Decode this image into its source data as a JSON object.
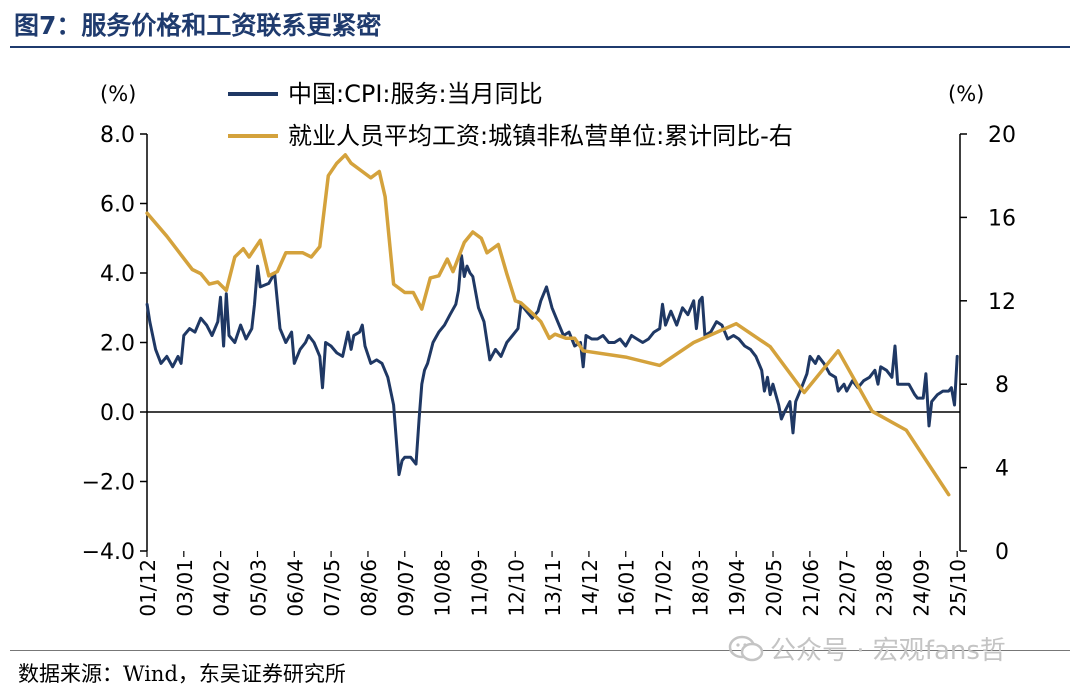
{
  "figure_title": "图7：服务价格和工资联系更紧密",
  "source": "数据来源：Wind，东吴证券研究所",
  "watermark": "公众号 · 宏观fans哲",
  "colors": {
    "cpi": "#1f3864",
    "wage": "#d4a23c",
    "title": "#1f3b6e"
  },
  "chart_data": {
    "type": "line",
    "title": "",
    "left_axis": {
      "unit_label": "(%)",
      "min": -4,
      "max": 8,
      "ticks": [
        -4,
        -2,
        0,
        2,
        4,
        6,
        8
      ],
      "tick_labels": [
        "−4.0",
        "−2.0",
        "0.0",
        "2.0",
        "4.0",
        "6.0",
        "8.0"
      ]
    },
    "right_axis": {
      "unit_label": "(%)",
      "min": 0,
      "max": 20,
      "ticks": [
        0,
        4,
        8,
        12,
        16,
        20
      ],
      "tick_labels": [
        "0",
        "4",
        "8",
        "12",
        "16",
        "20"
      ]
    },
    "x_range": [
      2001.917,
      2025.833
    ],
    "x_ticks": [
      {
        "label": "01/12",
        "x": 2001.917
      },
      {
        "label": "03/01",
        "x": 2003.0
      },
      {
        "label": "04/02",
        "x": 2004.083
      },
      {
        "label": "05/03",
        "x": 2005.167
      },
      {
        "label": "06/04",
        "x": 2006.25
      },
      {
        "label": "07/05",
        "x": 2007.333
      },
      {
        "label": "08/06",
        "x": 2008.417
      },
      {
        "label": "09/07",
        "x": 2009.5
      },
      {
        "label": "10/08",
        "x": 2010.583
      },
      {
        "label": "11/09",
        "x": 2011.667
      },
      {
        "label": "12/10",
        "x": 2012.75
      },
      {
        "label": "13/11",
        "x": 2013.833
      },
      {
        "label": "14/12",
        "x": 2014.917
      },
      {
        "label": "16/01",
        "x": 2016.0
      },
      {
        "label": "17/02",
        "x": 2017.083
      },
      {
        "label": "18/03",
        "x": 2018.167
      },
      {
        "label": "19/04",
        "x": 2019.25
      },
      {
        "label": "20/05",
        "x": 2020.333
      },
      {
        "label": "21/06",
        "x": 2021.417
      },
      {
        "label": "22/07",
        "x": 2022.5
      },
      {
        "label": "23/08",
        "x": 2023.583
      },
      {
        "label": "24/09",
        "x": 2024.667
      },
      {
        "label": "25/10",
        "x": 2025.75
      }
    ],
    "series": [
      {
        "name": "中国:CPI:服务:当月同比",
        "axis": "left",
        "points": [
          [
            2001.92,
            3.1
          ],
          [
            2002.0,
            2.6
          ],
          [
            2002.17,
            1.8
          ],
          [
            2002.33,
            1.4
          ],
          [
            2002.5,
            1.6
          ],
          [
            2002.67,
            1.3
          ],
          [
            2002.83,
            1.6
          ],
          [
            2002.92,
            1.4
          ],
          [
            2003.0,
            2.2
          ],
          [
            2003.17,
            2.4
          ],
          [
            2003.33,
            2.3
          ],
          [
            2003.5,
            2.7
          ],
          [
            2003.67,
            2.5
          ],
          [
            2003.83,
            2.2
          ],
          [
            2004.0,
            2.6
          ],
          [
            2004.08,
            3.3
          ],
          [
            2004.17,
            1.9
          ],
          [
            2004.25,
            3.4
          ],
          [
            2004.33,
            2.2
          ],
          [
            2004.5,
            2.0
          ],
          [
            2004.67,
            2.5
          ],
          [
            2004.83,
            2.1
          ],
          [
            2005.0,
            2.4
          ],
          [
            2005.08,
            3.1
          ],
          [
            2005.17,
            4.2
          ],
          [
            2005.25,
            3.6
          ],
          [
            2005.5,
            3.7
          ],
          [
            2005.67,
            4.0
          ],
          [
            2005.83,
            2.4
          ],
          [
            2006.0,
            2.0
          ],
          [
            2006.17,
            2.3
          ],
          [
            2006.25,
            1.4
          ],
          [
            2006.42,
            1.8
          ],
          [
            2006.58,
            2.0
          ],
          [
            2006.67,
            2.2
          ],
          [
            2006.83,
            2.0
          ],
          [
            2007.0,
            1.6
          ],
          [
            2007.08,
            0.7
          ],
          [
            2007.17,
            2.0
          ],
          [
            2007.33,
            1.9
          ],
          [
            2007.5,
            1.7
          ],
          [
            2007.67,
            1.6
          ],
          [
            2007.83,
            2.3
          ],
          [
            2007.92,
            1.8
          ],
          [
            2008.0,
            2.2
          ],
          [
            2008.17,
            2.3
          ],
          [
            2008.25,
            2.5
          ],
          [
            2008.33,
            1.9
          ],
          [
            2008.5,
            1.4
          ],
          [
            2008.67,
            1.5
          ],
          [
            2008.83,
            1.4
          ],
          [
            2009.0,
            1.0
          ],
          [
            2009.17,
            0.2
          ],
          [
            2009.25,
            -0.8
          ],
          [
            2009.33,
            -1.8
          ],
          [
            2009.42,
            -1.4
          ],
          [
            2009.5,
            -1.3
          ],
          [
            2009.67,
            -1.3
          ],
          [
            2009.83,
            -1.5
          ],
          [
            2009.92,
            -0.2
          ],
          [
            2010.0,
            0.8
          ],
          [
            2010.08,
            1.2
          ],
          [
            2010.17,
            1.4
          ],
          [
            2010.33,
            2.0
          ],
          [
            2010.5,
            2.3
          ],
          [
            2010.67,
            2.5
          ],
          [
            2010.83,
            2.8
          ],
          [
            2011.0,
            3.1
          ],
          [
            2011.08,
            3.5
          ],
          [
            2011.17,
            4.5
          ],
          [
            2011.25,
            3.9
          ],
          [
            2011.33,
            4.2
          ],
          [
            2011.42,
            4.0
          ],
          [
            2011.5,
            3.9
          ],
          [
            2011.67,
            3.0
          ],
          [
            2011.83,
            2.6
          ],
          [
            2012.0,
            1.5
          ],
          [
            2012.17,
            1.8
          ],
          [
            2012.33,
            1.6
          ],
          [
            2012.5,
            2.0
          ],
          [
            2012.67,
            2.2
          ],
          [
            2012.83,
            2.4
          ],
          [
            2012.92,
            3.1
          ],
          [
            2013.08,
            2.9
          ],
          [
            2013.25,
            2.7
          ],
          [
            2013.42,
            2.9
          ],
          [
            2013.5,
            3.2
          ],
          [
            2013.67,
            3.6
          ],
          [
            2013.83,
            3.0
          ],
          [
            2014.0,
            2.6
          ],
          [
            2014.17,
            2.2
          ],
          [
            2014.33,
            2.3
          ],
          [
            2014.5,
            1.9
          ],
          [
            2014.67,
            2.0
          ],
          [
            2014.75,
            1.3
          ],
          [
            2014.83,
            2.2
          ],
          [
            2015.0,
            2.1
          ],
          [
            2015.17,
            2.1
          ],
          [
            2015.33,
            2.2
          ],
          [
            2015.5,
            2.0
          ],
          [
            2015.67,
            2.0
          ],
          [
            2015.83,
            2.1
          ],
          [
            2016.0,
            1.9
          ],
          [
            2016.17,
            2.2
          ],
          [
            2016.33,
            2.1
          ],
          [
            2016.5,
            2.0
          ],
          [
            2016.67,
            2.1
          ],
          [
            2016.83,
            2.3
          ],
          [
            2017.0,
            2.4
          ],
          [
            2017.08,
            3.1
          ],
          [
            2017.17,
            2.5
          ],
          [
            2017.33,
            2.9
          ],
          [
            2017.5,
            2.5
          ],
          [
            2017.67,
            3.0
          ],
          [
            2017.83,
            2.8
          ],
          [
            2018.0,
            3.2
          ],
          [
            2018.08,
            2.4
          ],
          [
            2018.17,
            3.2
          ],
          [
            2018.25,
            3.3
          ],
          [
            2018.33,
            2.2
          ],
          [
            2018.5,
            2.3
          ],
          [
            2018.67,
            2.6
          ],
          [
            2018.83,
            2.5
          ],
          [
            2019.0,
            2.1
          ],
          [
            2019.17,
            2.2
          ],
          [
            2019.33,
            2.1
          ],
          [
            2019.5,
            1.9
          ],
          [
            2019.67,
            1.8
          ],
          [
            2019.83,
            1.6
          ],
          [
            2020.0,
            1.2
          ],
          [
            2020.08,
            0.6
          ],
          [
            2020.17,
            1.0
          ],
          [
            2020.25,
            0.5
          ],
          [
            2020.33,
            0.8
          ],
          [
            2020.5,
            0.2
          ],
          [
            2020.58,
            -0.2
          ],
          [
            2020.67,
            0.0
          ],
          [
            2020.83,
            0.3
          ],
          [
            2020.92,
            -0.6
          ],
          [
            2021.0,
            0.3
          ],
          [
            2021.17,
            0.7
          ],
          [
            2021.33,
            1.1
          ],
          [
            2021.42,
            1.6
          ],
          [
            2021.58,
            1.4
          ],
          [
            2021.67,
            1.6
          ],
          [
            2021.83,
            1.4
          ],
          [
            2022.0,
            1.1
          ],
          [
            2022.17,
            1.0
          ],
          [
            2022.25,
            0.6
          ],
          [
            2022.42,
            0.8
          ],
          [
            2022.5,
            0.6
          ],
          [
            2022.67,
            0.9
          ],
          [
            2022.83,
            0.7
          ],
          [
            2023.0,
            0.9
          ],
          [
            2023.17,
            1.0
          ],
          [
            2023.33,
            1.2
          ],
          [
            2023.42,
            0.8
          ],
          [
            2023.5,
            1.3
          ],
          [
            2023.67,
            1.2
          ],
          [
            2023.83,
            1.0
          ],
          [
            2023.92,
            1.9
          ],
          [
            2024.0,
            0.8
          ],
          [
            2024.17,
            0.8
          ],
          [
            2024.33,
            0.8
          ],
          [
            2024.5,
            0.5
          ],
          [
            2024.58,
            0.4
          ],
          [
            2024.75,
            0.4
          ],
          [
            2024.83,
            1.1
          ],
          [
            2024.92,
            -0.4
          ],
          [
            2025.0,
            0.3
          ],
          [
            2025.17,
            0.5
          ],
          [
            2025.33,
            0.6
          ],
          [
            2025.5,
            0.6
          ],
          [
            2025.58,
            0.7
          ],
          [
            2025.67,
            0.2
          ],
          [
            2025.75,
            1.6
          ]
        ]
      },
      {
        "name": "就业人员平均工资:城镇非私营单位:累计同比-右",
        "axis": "right",
        "points": [
          [
            2001.92,
            16.2
          ],
          [
            2002.5,
            15.1
          ],
          [
            2002.92,
            14.2
          ],
          [
            2003.25,
            13.5
          ],
          [
            2003.5,
            13.3
          ],
          [
            2003.75,
            12.8
          ],
          [
            2004.0,
            12.9
          ],
          [
            2004.25,
            12.5
          ],
          [
            2004.5,
            14.1
          ],
          [
            2004.75,
            14.5
          ],
          [
            2004.92,
            14.1
          ],
          [
            2005.25,
            14.9
          ],
          [
            2005.5,
            13.2
          ],
          [
            2005.75,
            13.4
          ],
          [
            2006.0,
            14.3
          ],
          [
            2006.5,
            14.3
          ],
          [
            2006.75,
            14.1
          ],
          [
            2007.0,
            14.6
          ],
          [
            2007.25,
            18.0
          ],
          [
            2007.5,
            18.6
          ],
          [
            2007.75,
            19.0
          ],
          [
            2007.92,
            18.6
          ],
          [
            2008.25,
            18.2
          ],
          [
            2008.5,
            17.9
          ],
          [
            2008.75,
            18.2
          ],
          [
            2008.92,
            17.0
          ],
          [
            2009.17,
            12.8
          ],
          [
            2009.5,
            12.4
          ],
          [
            2009.75,
            12.4
          ],
          [
            2010.0,
            11.6
          ],
          [
            2010.25,
            13.1
          ],
          [
            2010.5,
            13.2
          ],
          [
            2010.75,
            14.0
          ],
          [
            2010.92,
            13.4
          ],
          [
            2011.25,
            14.8
          ],
          [
            2011.5,
            15.3
          ],
          [
            2011.75,
            15.0
          ],
          [
            2011.92,
            14.3
          ],
          [
            2012.25,
            14.7
          ],
          [
            2012.5,
            13.3
          ],
          [
            2012.75,
            12.0
          ],
          [
            2012.92,
            11.9
          ],
          [
            2013.25,
            11.4
          ],
          [
            2013.5,
            11.0
          ],
          [
            2013.75,
            10.2
          ],
          [
            2013.92,
            10.4
          ],
          [
            2014.25,
            10.2
          ],
          [
            2014.5,
            10.2
          ],
          [
            2014.75,
            9.6
          ],
          [
            2016.0,
            9.3
          ],
          [
            2017.0,
            8.9
          ],
          [
            2018.0,
            10.0
          ],
          [
            2019.25,
            10.9
          ],
          [
            2020.25,
            9.8
          ],
          [
            2021.25,
            7.6
          ],
          [
            2022.25,
            9.6
          ],
          [
            2023.25,
            6.7
          ],
          [
            2024.25,
            5.8
          ],
          [
            2025.5,
            2.7
          ]
        ]
      }
    ]
  }
}
